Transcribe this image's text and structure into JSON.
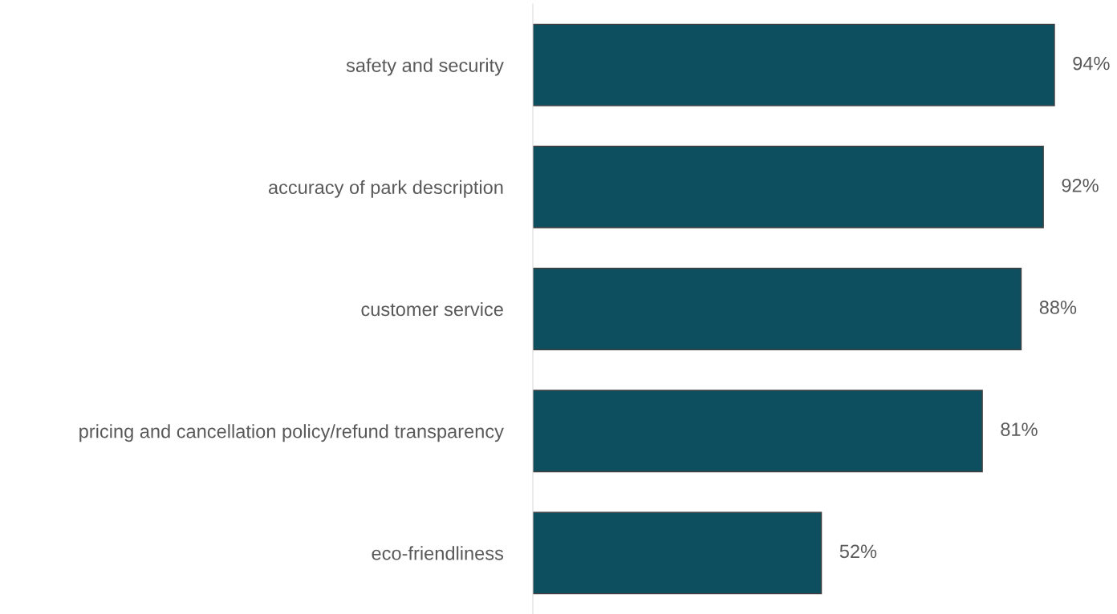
{
  "chart_data": {
    "type": "bar",
    "orientation": "horizontal",
    "categories": [
      "safety and security",
      "accuracy of park description",
      "customer service",
      "pricing and cancellation policy/refund transparency",
      "eco-friendliness"
    ],
    "values": [
      94,
      92,
      88,
      81,
      52
    ],
    "value_labels": [
      "94%",
      "92%",
      "88%",
      "81%",
      "52%"
    ],
    "color": "#0d4f5f",
    "grid": false,
    "legend": false,
    "tick_labels": "y"
  }
}
